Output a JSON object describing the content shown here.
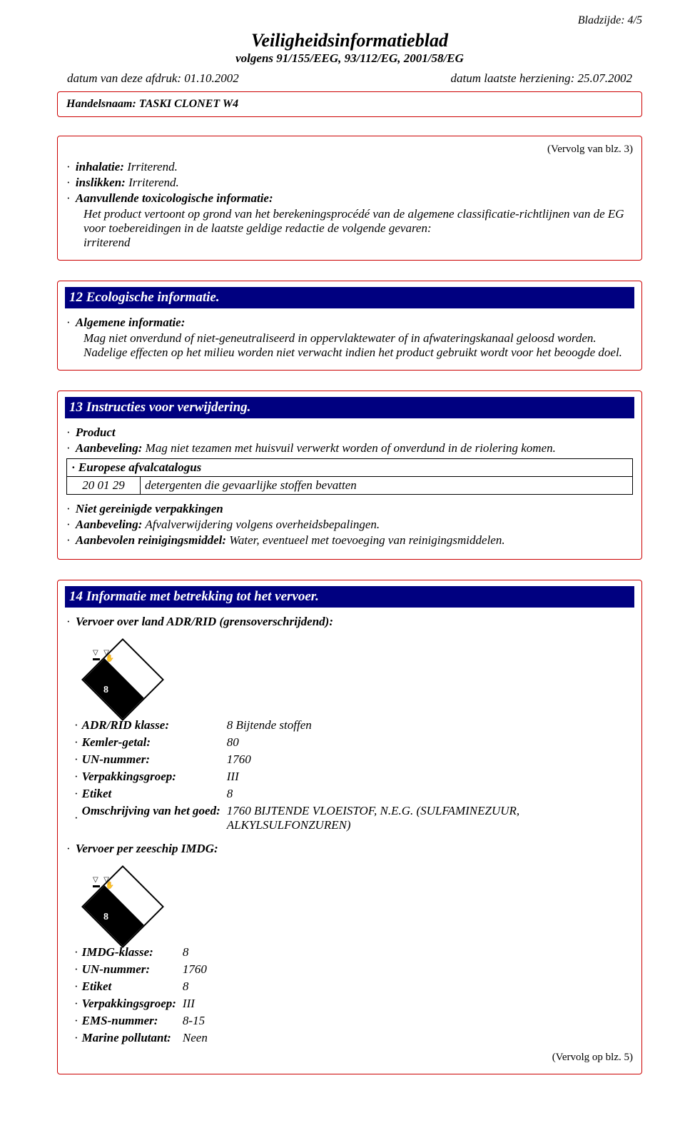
{
  "page": {
    "number_label": "Bladzijde: 4/5",
    "title": "Veiligheidsinformatieblad",
    "subtitle": "volgens 91/155/EEG, 93/112/EG, 2001/58/EG",
    "print_date_label": "datum van deze afdruk: 01.10.2002",
    "revision_date_label": "datum laatste herziening: 25.07.2002",
    "tradename_label": "Handelsnaam:",
    "tradename_value": "TASKI CLONET W4"
  },
  "section_first": {
    "continued_from": "(Vervolg van blz. 3)",
    "inhalation_label": "inhalatie:",
    "inhalation_value": "Irriterend.",
    "ingestion_label": "inslikken:",
    "ingestion_value": "Irriterend.",
    "tox_label": "Aanvullende toxicologische informatie:",
    "tox_body1": "Het product vertoont op grond van het berekeningsprocédé van de algemene classificatie-richtlijnen van de EG voor toebereidingen in de laatste geldige redactie de volgende gevaren:",
    "tox_body2": "irriterend"
  },
  "section12": {
    "heading": "12 Ecologische informatie.",
    "gen_label": "Algemene informatie:",
    "gen_body1": "Mag niet onverdund of niet-geneutraliseerd in oppervlaktewater of in afwateringskanaal geloosd worden.",
    "gen_body2": "Nadelige effecten op het milieu worden niet verwacht indien het product gebruikt wordt voor het beoogde doel."
  },
  "section13": {
    "heading": "13 Instructies voor verwijdering.",
    "product_label": "Product",
    "recommend_label": "Aanbeveling:",
    "recommend_value": "Mag niet tezamen met huisvuil verwerkt worden of onverdund in de riolering komen.",
    "ewc_label": "Europese afvalcatalogus",
    "ewc_code": "20 01 29",
    "ewc_desc": "detergenten die gevaarlijke stoffen bevatten",
    "uncleaned_label": "Niet gereinigde verpakkingen",
    "pack_recommend_label": "Aanbeveling:",
    "pack_recommend_value": "Afvalverwijdering volgens overheidsbepalingen.",
    "cleanser_label": "Aanbevolen reinigingsmiddel:",
    "cleanser_value": "Water, eventueel met toevoeging van reinigingsmiddelen."
  },
  "section14": {
    "heading": "14 Informatie met betrekking tot het vervoer.",
    "land_label": "Vervoer over land ADR/RID (grensoverschrijdend):",
    "adr_rows": [
      {
        "k": "ADR/RID klasse:",
        "v": "8 Bijtende stoffen"
      },
      {
        "k": "Kemler-getal:",
        "v": "80"
      },
      {
        "k": "UN-nummer:",
        "v": "1760"
      },
      {
        "k": "Verpakkingsgroep:",
        "v": "III"
      },
      {
        "k": "Etiket",
        "v": "8"
      },
      {
        "k": "Omschrijving van het goed:",
        "v": "1760 BIJTENDE VLOEISTOF, N.E.G. (SULFAMINEZUUR, ALKYLSULFONZUREN)"
      }
    ],
    "sea_label": "Vervoer per zeeschip IMDG:",
    "imdg_rows": [
      {
        "k": "IMDG-klasse:",
        "v": "8"
      },
      {
        "k": "UN-nummer:",
        "v": "1760"
      },
      {
        "k": "Etiket",
        "v": "8"
      },
      {
        "k": "Verpakkingsgroep:",
        "v": "III"
      },
      {
        "k": "EMS-nummer:",
        "v": "8-15"
      },
      {
        "k": "Marine pollutant:",
        "v": "Neen"
      }
    ],
    "continued_to": "(Vervolg op blz. 5)"
  },
  "colors": {
    "border_red": "#cc0000",
    "heading_blue": "#000080",
    "text": "#000000",
    "bg": "#ffffff"
  }
}
